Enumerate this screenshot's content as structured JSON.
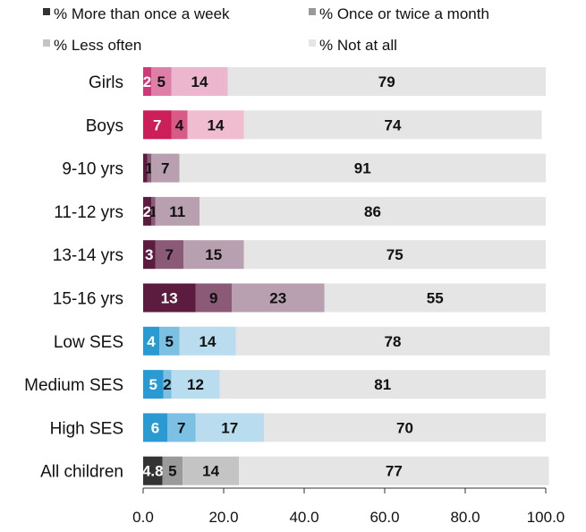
{
  "chart_data": {
    "type": "bar",
    "orientation": "horizontal",
    "stacked": true,
    "legend": {
      "placement": "top",
      "entries": [
        {
          "label": "% More than once a week",
          "color": "#333333"
        },
        {
          "label": "% Once or twice a month",
          "color": "#9a9a9a"
        },
        {
          "label": "% Less often",
          "color": "#c4c4c4"
        },
        {
          "label": "% Not at all",
          "color": "#e5e5e5"
        }
      ]
    },
    "categories": [
      "Girls",
      "Boys",
      "9-10 yrs",
      "11-12 yrs",
      "13-14 yrs",
      "15-16 yrs",
      "Low SES",
      "Medium SES",
      "High SES",
      "All children"
    ],
    "series": [
      {
        "name": "% More than once a week",
        "values": [
          2,
          7,
          1,
          2,
          3,
          13,
          4,
          5,
          6,
          4.8
        ]
      },
      {
        "name": "% Once or twice a month",
        "values": [
          5,
          4,
          1,
          1,
          7,
          9,
          5,
          2,
          7,
          5
        ]
      },
      {
        "name": "% Less often",
        "values": [
          14,
          14,
          7,
          11,
          15,
          23,
          14,
          12,
          17,
          14
        ]
      },
      {
        "name": "% Not at all",
        "values": [
          79,
          74,
          91,
          86,
          75,
          55,
          78,
          81,
          70,
          77
        ]
      }
    ],
    "data_labels": [
      [
        "2",
        "5",
        "14",
        "79"
      ],
      [
        "7",
        "4",
        "14",
        "74"
      ],
      [
        "",
        "1",
        "7",
        "91"
      ],
      [
        "2",
        "1",
        "11",
        "86"
      ],
      [
        "3",
        "7",
        "15",
        "75"
      ],
      [
        "13",
        "9",
        "23",
        "55"
      ],
      [
        "4",
        "5",
        "14",
        "78"
      ],
      [
        "5",
        "2",
        "12",
        "81"
      ],
      [
        "6",
        "7",
        "17",
        "70"
      ],
      [
        "4.8",
        "5",
        "14",
        "77"
      ]
    ],
    "row_colors": [
      [
        "#cc3a7a",
        "#de7fa7",
        "#ecb7ce",
        "#e5e5e5"
      ],
      [
        "#cc1f5a",
        "#d85b87",
        "#f0bccf",
        "#e5e5e5"
      ],
      [
        "#5b1c3f",
        "#8a5a76",
        "#b9a0b0",
        "#e5e5e5"
      ],
      [
        "#5b1c3f",
        "#8a5a76",
        "#b9a0b0",
        "#e5e5e5"
      ],
      [
        "#5b1c3f",
        "#8a5a76",
        "#b9a0b0",
        "#e5e5e5"
      ],
      [
        "#5b1c3f",
        "#8a5a76",
        "#b9a0b0",
        "#e5e5e5"
      ],
      [
        "#2a9ad2",
        "#7cc0e3",
        "#b9ddef",
        "#e5e5e5"
      ],
      [
        "#2a9ad2",
        "#7cc0e3",
        "#b9ddef",
        "#e5e5e5"
      ],
      [
        "#2a9ad2",
        "#7cc0e3",
        "#b9ddef",
        "#e5e5e5"
      ],
      [
        "#333333",
        "#9a9a9a",
        "#c4c4c4",
        "#e5e5e5"
      ]
    ],
    "label_colors": [
      "#ffffff",
      "#111111",
      "#111111",
      "#111111"
    ],
    "xlim": [
      0,
      100
    ],
    "xticks": [
      "0.0",
      "20.0",
      "40.0",
      "60.0",
      "80.0",
      "100.0"
    ],
    "grid": false,
    "title": "",
    "xlabel": "",
    "ylabel": ""
  }
}
